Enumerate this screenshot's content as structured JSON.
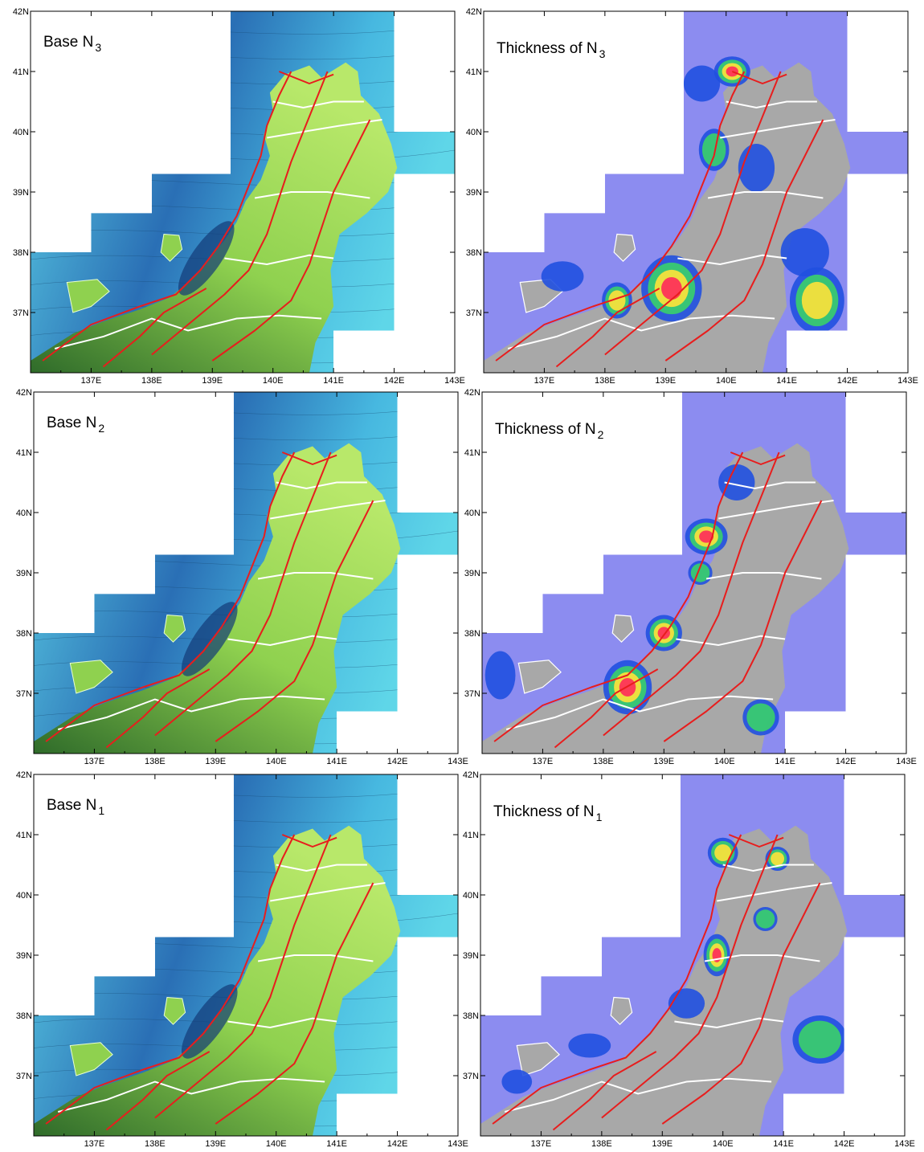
{
  "lon_labels": [
    "137E",
    "138E",
    "139E",
    "140E",
    "141E",
    "142E",
    "143E"
  ],
  "lat_labels": [
    "42N",
    "41N",
    "40N",
    "39N",
    "38N",
    "37N"
  ],
  "lon_range": [
    136,
    143
  ],
  "lat_range": [
    36,
    42
  ],
  "panels": [
    {
      "title": "Base N",
      "sub": "3",
      "kind": "base"
    },
    {
      "title": "Thickness of N",
      "sub": "3",
      "kind": "thick"
    },
    {
      "title": "Base N",
      "sub": "2",
      "kind": "base"
    },
    {
      "title": "Thickness of N",
      "sub": "2",
      "kind": "thick"
    },
    {
      "title": "Base N",
      "sub": "1",
      "kind": "base"
    },
    {
      "title": "Thickness of N",
      "sub": "1",
      "kind": "thick"
    }
  ],
  "colors": {
    "sea_base": "#5fd6e8",
    "deep_base": "#2a6fb5",
    "land_base": "#8fd14f",
    "dark_land": "#2f6b2a",
    "sea_thick": "#8c8cf0",
    "land_thick": "#a8a8a8",
    "hot": "#ff2a5a",
    "warm": "#ffe23a",
    "mid": "#3ad06a",
    "cool": "#2050e0",
    "fault_red": "#e81d1d",
    "boundary_white": "#ffffff"
  }
}
